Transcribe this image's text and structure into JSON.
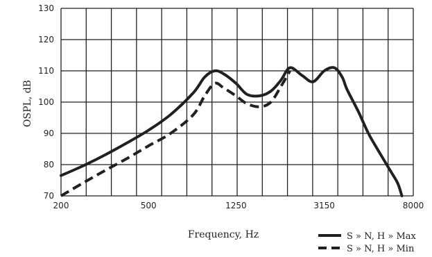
{
  "chart_data": {
    "type": "line",
    "title": "",
    "xlabel": "Frequency, Hz",
    "ylabel": "OSPL, dB",
    "x_scale": "log",
    "xlim": [
      200,
      8000
    ],
    "ylim": [
      70,
      130
    ],
    "grid": true,
    "x_ticks": [
      200,
      500,
      1250,
      3150,
      8000
    ],
    "x_tick_labels": [
      "200",
      "500",
      "1250",
      "3150",
      "8000"
    ],
    "y_ticks": [
      70,
      80,
      90,
      100,
      110,
      120,
      130
    ],
    "y_tick_labels": [
      "70",
      "80",
      "90",
      "100",
      "110",
      "120",
      "130"
    ],
    "legend_position": "bottom-right",
    "series": [
      {
        "name": "S » N, H » Max",
        "style": "solid",
        "x": [
          200,
          250,
          315,
          400,
          500,
          630,
          800,
          900,
          1000,
          1100,
          1250,
          1400,
          1600,
          1800,
          2000,
          2200,
          2500,
          2800,
          3150,
          3500,
          3800,
          4000,
          4500,
          5000,
          5600,
          6300,
          6800,
          7100
        ],
        "y": [
          76.5,
          79.5,
          83,
          87,
          91,
          96,
          103,
          108,
          110,
          109,
          106,
          102.5,
          102,
          103.5,
          107,
          111,
          108.5,
          106.5,
          110,
          111,
          108,
          104,
          97,
          90,
          84,
          78,
          74,
          70
        ]
      },
      {
        "name": "S » N, H » Min",
        "style": "dashed",
        "x": [
          200,
          250,
          315,
          400,
          500,
          630,
          800,
          900,
          1000,
          1100,
          1250,
          1400,
          1600,
          1800,
          2000,
          2200
        ],
        "y": [
          70,
          74,
          78,
          82,
          86,
          90,
          96,
          102,
          106,
          104.5,
          102,
          99.5,
          98.5,
          100,
          105,
          110
        ]
      }
    ]
  }
}
